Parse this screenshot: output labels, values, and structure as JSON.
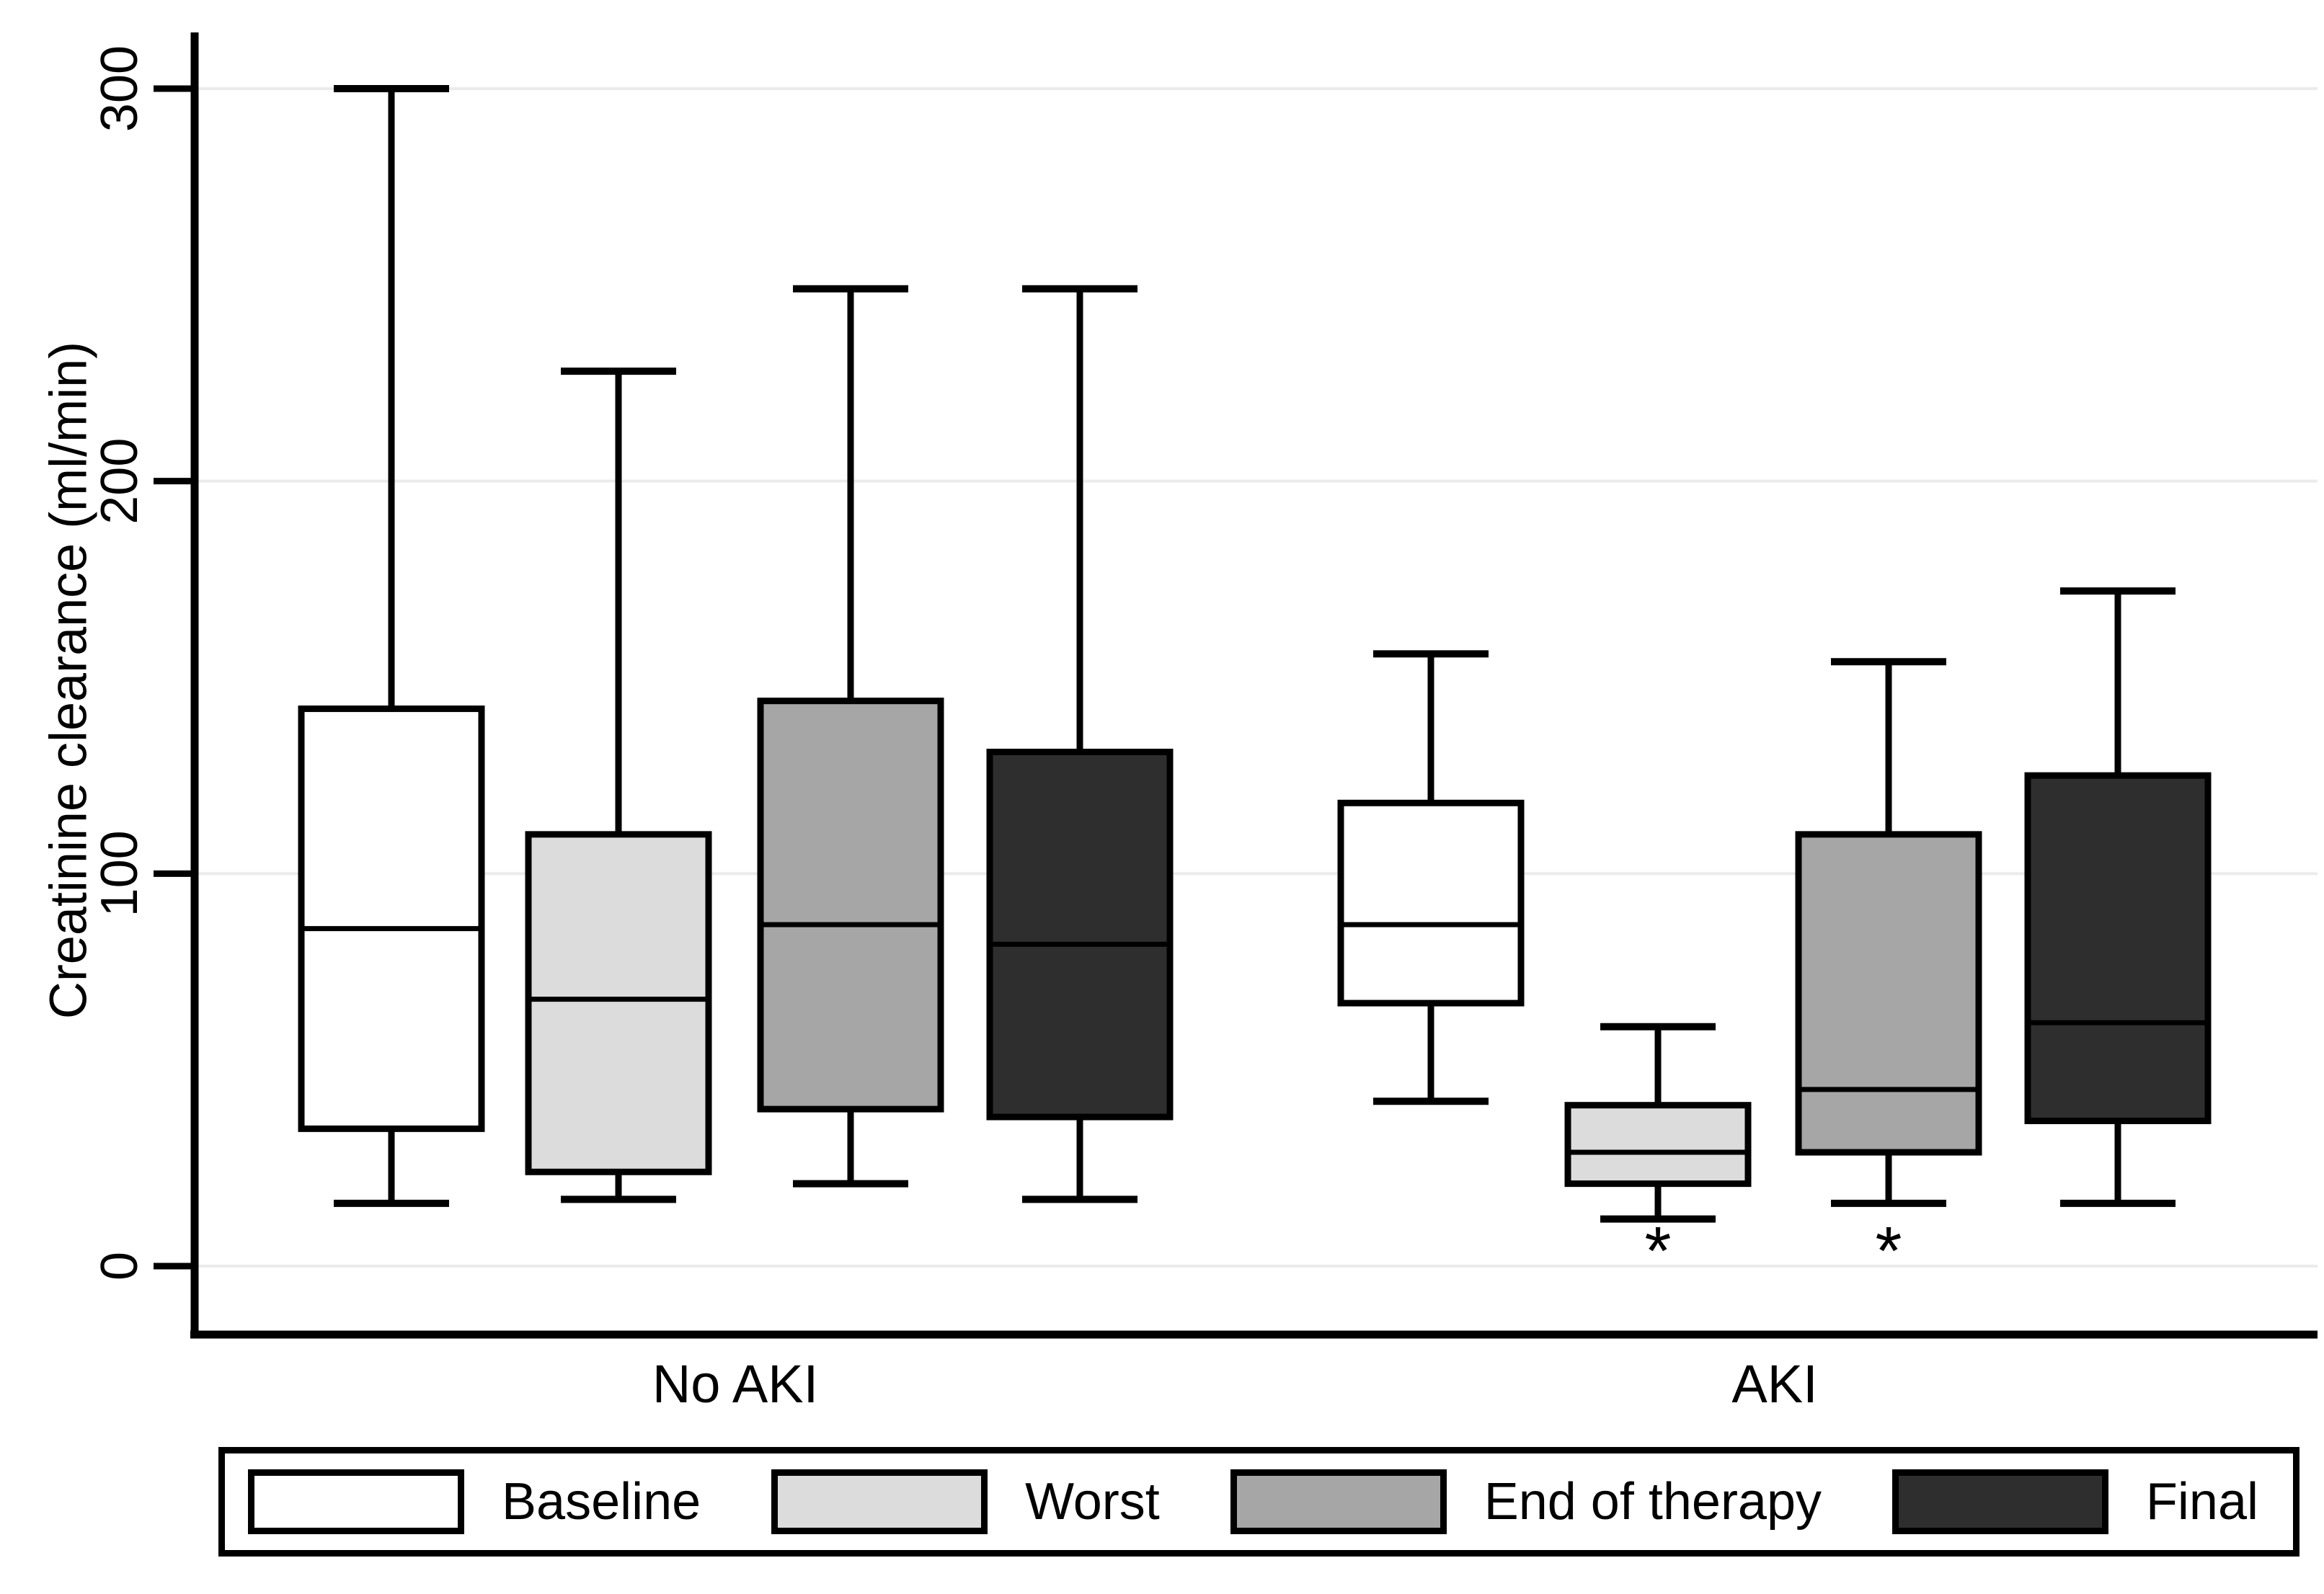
{
  "chart_data": {
    "type": "box",
    "title": "",
    "xlabel": "",
    "ylabel": "Creatinine clearance (ml/min)",
    "ylim": [
      0,
      300
    ],
    "yticks": [
      0,
      100,
      200,
      300
    ],
    "grid": true,
    "legend_position": "bottom",
    "categories": [
      "No AKI",
      "AKI"
    ],
    "series": [
      {
        "name": "Baseline",
        "color": "#ffffff",
        "boxes": [
          {
            "min": 16,
            "q1": 35,
            "median": 86,
            "q3": 142,
            "max": 300
          },
          {
            "min": 42,
            "q1": 67,
            "median": 87,
            "q3": 118,
            "max": 156
          }
        ]
      },
      {
        "name": "Worst",
        "color": "#dcdcdc",
        "boxes": [
          {
            "min": 17,
            "q1": 24,
            "median": 68,
            "q3": 110,
            "max": 228
          },
          {
            "min": 12,
            "q1": 21,
            "median": 29,
            "q3": 41,
            "max": 61
          }
        ]
      },
      {
        "name": "End of therapy",
        "color": "#a6a6a6",
        "boxes": [
          {
            "min": 21,
            "q1": 40,
            "median": 87,
            "q3": 144,
            "max": 249
          },
          {
            "min": 16,
            "q1": 29,
            "median": 45,
            "q3": 110,
            "max": 154
          }
        ]
      },
      {
        "name": "Final",
        "color": "#2e2e2e",
        "boxes": [
          {
            "min": 17,
            "q1": 38,
            "median": 82,
            "q3": 131,
            "max": 249
          },
          {
            "min": 16,
            "q1": 37,
            "median": 62,
            "q3": 125,
            "max": 172
          }
        ]
      }
    ],
    "annotations": [
      {
        "text": "*",
        "category": "AKI",
        "series": "Worst"
      },
      {
        "text": "*",
        "category": "AKI",
        "series": "End of therapy"
      }
    ],
    "style": {
      "axis_color": "#000000",
      "gridline_color": "#ebebeb",
      "box_border_color": "#000000",
      "background": "#ffffff"
    }
  }
}
